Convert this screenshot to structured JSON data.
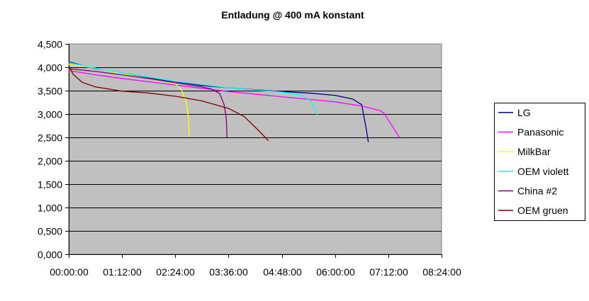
{
  "chart_data": {
    "type": "line",
    "title": "Entladung @ 400 mA konstant",
    "xlabel": "",
    "ylabel": "",
    "xlim": [
      "00:00:00",
      "08:24:00"
    ],
    "ylim": [
      0,
      4500
    ],
    "x_ticks": [
      "00:00:00",
      "01:12:00",
      "02:24:00",
      "03:36:00",
      "04:48:00",
      "06:00:00",
      "07:12:00",
      "08:24:00"
    ],
    "y_ticks": [
      "0,000",
      "0,500",
      "1,000",
      "1,500",
      "2,000",
      "2,500",
      "3,000",
      "3,500",
      "4,000",
      "4,500"
    ],
    "grid": "horizontal",
    "legend_position": "right",
    "plot_background": "#c0c0c0",
    "series": [
      {
        "name": "LG",
        "color": "#000080",
        "points": [
          [
            "00:00:00",
            4120
          ],
          [
            "00:30:00",
            3990
          ],
          [
            "01:12:00",
            3880
          ],
          [
            "01:48:00",
            3770
          ],
          [
            "02:24:00",
            3690
          ],
          [
            "03:00:00",
            3610
          ],
          [
            "03:36:00",
            3560
          ],
          [
            "04:12:00",
            3520
          ],
          [
            "04:48:00",
            3480
          ],
          [
            "05:24:00",
            3450
          ],
          [
            "06:00:00",
            3400
          ],
          [
            "06:24:00",
            3320
          ],
          [
            "06:36:00",
            3200
          ],
          [
            "06:42:00",
            2700
          ],
          [
            "06:45:00",
            2400
          ]
        ]
      },
      {
        "name": "Panasonic",
        "color": "#ff00ff",
        "points": [
          [
            "00:00:00",
            3930
          ],
          [
            "00:36:00",
            3840
          ],
          [
            "01:12:00",
            3760
          ],
          [
            "02:24:00",
            3620
          ],
          [
            "03:36:00",
            3480
          ],
          [
            "04:48:00",
            3370
          ],
          [
            "06:00:00",
            3260
          ],
          [
            "06:36:00",
            3170
          ],
          [
            "07:00:00",
            3080
          ],
          [
            "07:06:00",
            3020
          ],
          [
            "07:15:00",
            2800
          ],
          [
            "07:27:00",
            2500
          ]
        ]
      },
      {
        "name": "MilkBar",
        "color": "#ffff00",
        "points": [
          [
            "00:00:00",
            4060
          ],
          [
            "00:36:00",
            3980
          ],
          [
            "01:12:00",
            3860
          ],
          [
            "01:48:00",
            3760
          ],
          [
            "02:12:00",
            3690
          ],
          [
            "02:24:00",
            3650
          ],
          [
            "02:33:00",
            3500
          ],
          [
            "02:39:00",
            3250
          ],
          [
            "02:42:00",
            2900
          ],
          [
            "02:43:00",
            2520
          ]
        ]
      },
      {
        "name": "OEM violett",
        "color": "#00ffff",
        "points": [
          [
            "00:00:00",
            4100
          ],
          [
            "00:36:00",
            3980
          ],
          [
            "01:12:00",
            3880
          ],
          [
            "02:24:00",
            3700
          ],
          [
            "03:36:00",
            3560
          ],
          [
            "04:48:00",
            3470
          ],
          [
            "05:12:00",
            3420
          ],
          [
            "05:24:00",
            3320
          ],
          [
            "05:30:00",
            3200
          ],
          [
            "05:36:00",
            2980
          ]
        ]
      },
      {
        "name": "China #2",
        "color": "#800080",
        "points": [
          [
            "00:00:00",
            3970
          ],
          [
            "00:36:00",
            3910
          ],
          [
            "01:12:00",
            3840
          ],
          [
            "01:48:00",
            3760
          ],
          [
            "02:24:00",
            3670
          ],
          [
            "03:00:00",
            3580
          ],
          [
            "03:12:00",
            3540
          ],
          [
            "03:24:00",
            3440
          ],
          [
            "03:30:00",
            3200
          ],
          [
            "03:33:00",
            2900
          ],
          [
            "03:34:00",
            2500
          ]
        ]
      },
      {
        "name": "OEM gruen",
        "color": "#800000",
        "points": [
          [
            "00:00:00",
            4030
          ],
          [
            "00:06:00",
            3850
          ],
          [
            "00:18:00",
            3680
          ],
          [
            "00:36:00",
            3580
          ],
          [
            "01:12:00",
            3490
          ],
          [
            "01:48:00",
            3450
          ],
          [
            "02:24:00",
            3380
          ],
          [
            "03:00:00",
            3280
          ],
          [
            "03:36:00",
            3120
          ],
          [
            "03:57:00",
            2950
          ],
          [
            "04:12:00",
            2720
          ],
          [
            "04:30:00",
            2430
          ]
        ]
      }
    ]
  }
}
